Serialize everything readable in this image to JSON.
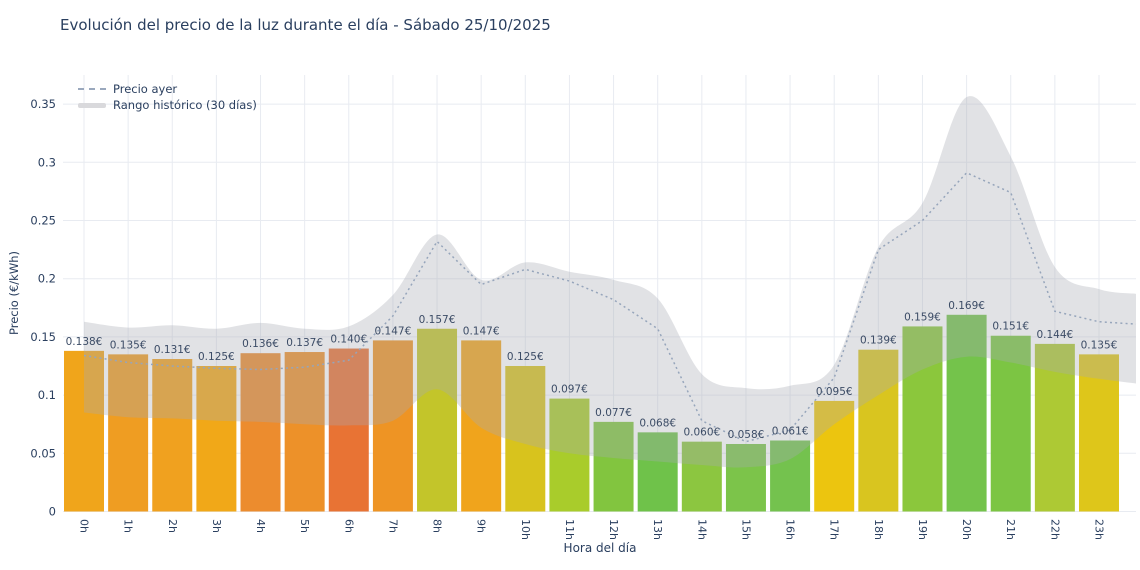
{
  "title": "Evolución del precio de la luz durante el día - Sábado 25/10/2025",
  "axes": {
    "x_title": "Hora del día",
    "y_title": "Precio (€/kWh)"
  },
  "legend": {
    "precio_ayer_label": "Precio ayer",
    "rango_historico_label": "Rango histórico (30 días)"
  },
  "chart_data": {
    "type": "bar",
    "title": "Evolución del precio de la luz durante el día - Sábado 25/10/2025",
    "xlabel": "Hora del día",
    "ylabel": "Precio (€/kWh)",
    "ylim": [
      0,
      0.375
    ],
    "yticks": [
      0,
      0.05,
      0.1,
      0.15,
      0.2,
      0.25,
      0.3,
      0.35
    ],
    "ytick_labels": [
      "0",
      "0.05",
      "0.1",
      "0.15",
      "0.2",
      "0.25",
      "0.3",
      "0.35"
    ],
    "grid": true,
    "legend_position": "top-left-inside",
    "categories": [
      "0h",
      "1h",
      "2h",
      "3h",
      "4h",
      "5h",
      "6h",
      "7h",
      "8h",
      "9h",
      "10h",
      "11h",
      "12h",
      "13h",
      "14h",
      "15h",
      "16h",
      "17h",
      "18h",
      "19h",
      "20h",
      "21h",
      "22h",
      "23h"
    ],
    "bars": {
      "values": [
        0.138,
        0.135,
        0.131,
        0.125,
        0.136,
        0.137,
        0.14,
        0.147,
        0.157,
        0.147,
        0.125,
        0.097,
        0.077,
        0.068,
        0.06,
        0.058,
        0.061,
        0.095,
        0.139,
        0.159,
        0.169,
        0.151,
        0.144,
        0.135
      ],
      "labels": [
        "0.138€",
        "0.135€",
        "0.131€",
        "0.125€",
        "0.136€",
        "0.137€",
        "0.140€",
        "0.147€",
        "0.157€",
        "0.147€",
        "0.125€",
        "0.097€",
        "0.077€",
        "0.068€",
        "0.060€",
        "0.058€",
        "0.061€",
        "0.095€",
        "0.139€",
        "0.159€",
        "0.169€",
        "0.151€",
        "0.144€",
        "0.135€"
      ],
      "colors": [
        "#F0A51B",
        "#EF9D22",
        "#F0A11F",
        "#F1A818",
        "#EC8C2E",
        "#ED9129",
        "#E87334",
        "#EE9424",
        "#C3C52A",
        "#F0A41C",
        "#D8C31D",
        "#A9CC2B",
        "#82C53F",
        "#6FC24A",
        "#8CC640",
        "#7CC44A",
        "#74C24E",
        "#ECC50F",
        "#D9C51F",
        "#8BC73C",
        "#74C34B",
        "#7CC543",
        "#ADC934",
        "#DEC61A"
      ]
    },
    "yesterday_line": {
      "name": "Precio ayer",
      "values": [
        0.134,
        0.128,
        0.125,
        0.123,
        0.122,
        0.124,
        0.13,
        0.168,
        0.232,
        0.195,
        0.208,
        0.198,
        0.182,
        0.157,
        0.078,
        0.06,
        0.07,
        0.115,
        0.225,
        0.25,
        0.291,
        0.274,
        0.172,
        0.163
      ]
    },
    "historic_range": {
      "name": "Rango histórico (30 días)",
      "low": [
        0.085,
        0.081,
        0.08,
        0.078,
        0.077,
        0.075,
        0.074,
        0.078,
        0.105,
        0.072,
        0.058,
        0.05,
        0.046,
        0.043,
        0.04,
        0.038,
        0.045,
        0.075,
        0.1,
        0.122,
        0.133,
        0.128,
        0.12,
        0.114
      ],
      "high": [
        0.163,
        0.158,
        0.16,
        0.157,
        0.162,
        0.157,
        0.159,
        0.186,
        0.238,
        0.199,
        0.214,
        0.206,
        0.199,
        0.183,
        0.118,
        0.106,
        0.108,
        0.126,
        0.227,
        0.265,
        0.356,
        0.305,
        0.21,
        0.191
      ]
    }
  },
  "colors": {
    "title_text": "#2a3f5f",
    "tick_text": "#2a3f5f",
    "bar_label_text": "#3c4c66",
    "grid": "#e8ebf1",
    "dotted_line": "#96a5bb",
    "band_fill": "rgba(167,171,180,0.34)",
    "background": "#ffffff"
  }
}
